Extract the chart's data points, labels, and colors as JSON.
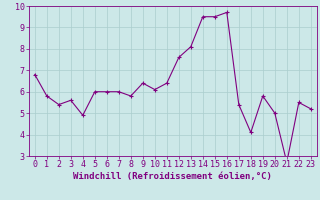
{
  "x": [
    0,
    1,
    2,
    3,
    4,
    5,
    6,
    7,
    8,
    9,
    10,
    11,
    12,
    13,
    14,
    15,
    16,
    17,
    18,
    19,
    20,
    21,
    22,
    23
  ],
  "y": [
    6.8,
    5.8,
    5.4,
    5.6,
    4.9,
    6.0,
    6.0,
    6.0,
    5.8,
    6.4,
    6.1,
    6.4,
    7.6,
    8.1,
    9.5,
    9.5,
    9.7,
    5.4,
    4.1,
    5.8,
    5.0,
    2.7,
    5.5,
    5.2
  ],
  "line_color": "#800080",
  "marker": "+",
  "marker_size": 3,
  "bg_color": "#cce8e8",
  "grid_color": "#aacece",
  "xlabel": "Windchill (Refroidissement éolien,°C)",
  "ylim": [
    3,
    10
  ],
  "xlim": [
    -0.5,
    23.5
  ],
  "yticks": [
    3,
    4,
    5,
    6,
    7,
    8,
    9,
    10
  ],
  "xticks": [
    0,
    1,
    2,
    3,
    4,
    5,
    6,
    7,
    8,
    9,
    10,
    11,
    12,
    13,
    14,
    15,
    16,
    17,
    18,
    19,
    20,
    21,
    22,
    23
  ],
  "tick_color": "#800080",
  "label_color": "#800080",
  "spine_color": "#800080",
  "xlabel_fontsize": 6.5,
  "tick_fontsize": 6.0,
  "linewidth": 0.8,
  "marker_edge_width": 0.8
}
